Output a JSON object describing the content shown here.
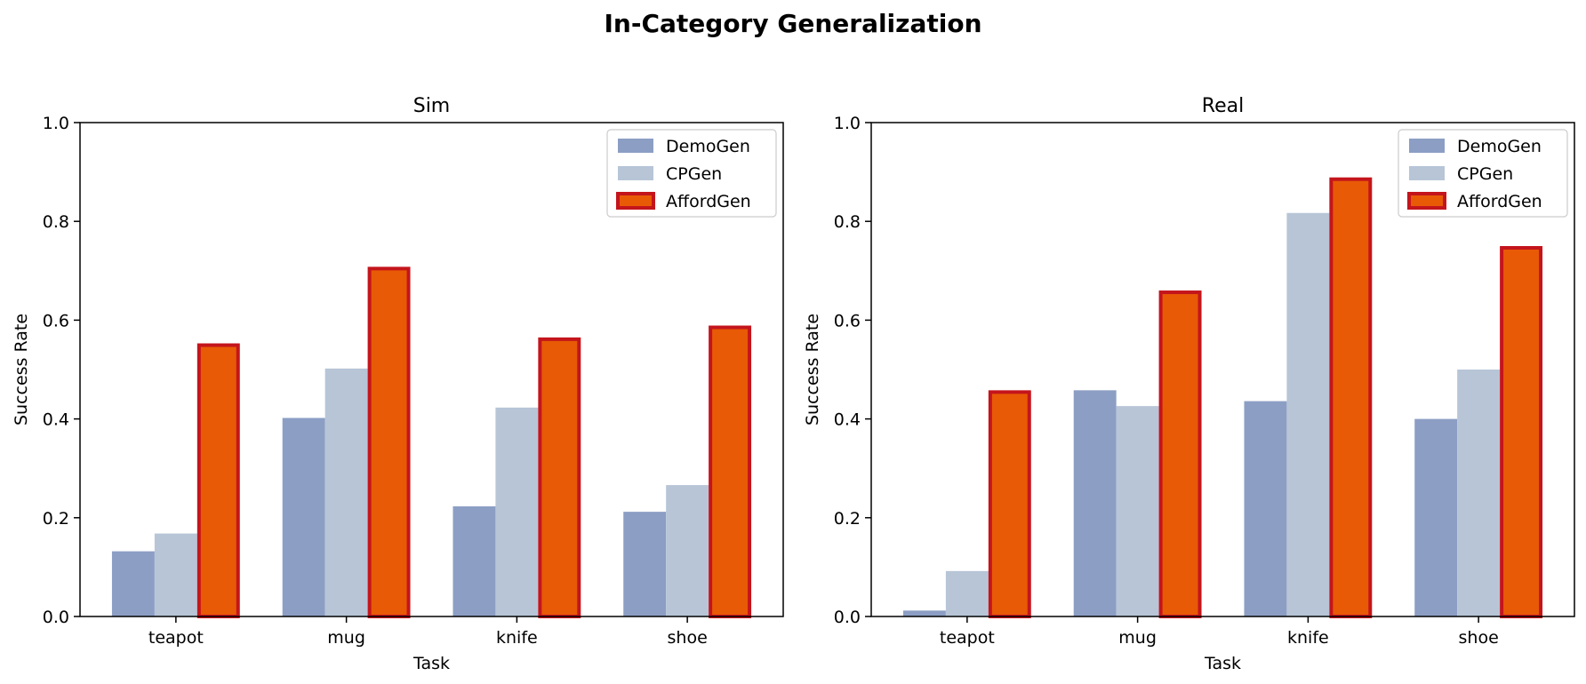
{
  "figure": {
    "title": "In-Category Generalization"
  },
  "colors": {
    "DemoGen": "#8c9ec4",
    "CPGen": "#b7c5d7",
    "AffordGen": "#e85a06",
    "AffordGen_edge": "#c4151c",
    "legend_edge": "#cccccc"
  },
  "chart_data": [
    {
      "type": "bar",
      "title": "Sim",
      "xlabel": "Task",
      "ylabel": "Success Rate",
      "ylim": [
        0,
        1.0
      ],
      "yticks": [
        "0.0",
        "0.2",
        "0.4",
        "0.6",
        "0.8",
        "1.0"
      ],
      "categories": [
        "teapot",
        "mug",
        "knife",
        "shoe"
      ],
      "legend_position": "top-right",
      "series": [
        {
          "name": "DemoGen",
          "values": [
            0.132,
            0.402,
            0.223,
            0.212
          ]
        },
        {
          "name": "CPGen",
          "values": [
            0.168,
            0.502,
            0.423,
            0.266
          ]
        },
        {
          "name": "AffordGen",
          "values": [
            0.553,
            0.708,
            0.565,
            0.589
          ]
        }
      ]
    },
    {
      "type": "bar",
      "title": "Real",
      "xlabel": "Task",
      "ylabel": "Success Rate",
      "ylim": [
        0,
        1.0
      ],
      "yticks": [
        "0.0",
        "0.2",
        "0.4",
        "0.6",
        "0.8",
        "1.0"
      ],
      "categories": [
        "teapot",
        "mug",
        "knife",
        "shoe"
      ],
      "legend_position": "top-right",
      "series": [
        {
          "name": "DemoGen",
          "values": [
            0.012,
            0.458,
            0.436,
            0.4
          ]
        },
        {
          "name": "CPGen",
          "values": [
            0.092,
            0.426,
            0.817,
            0.5
          ]
        },
        {
          "name": "AffordGen",
          "values": [
            0.458,
            0.66,
            0.889,
            0.75
          ]
        }
      ]
    }
  ]
}
